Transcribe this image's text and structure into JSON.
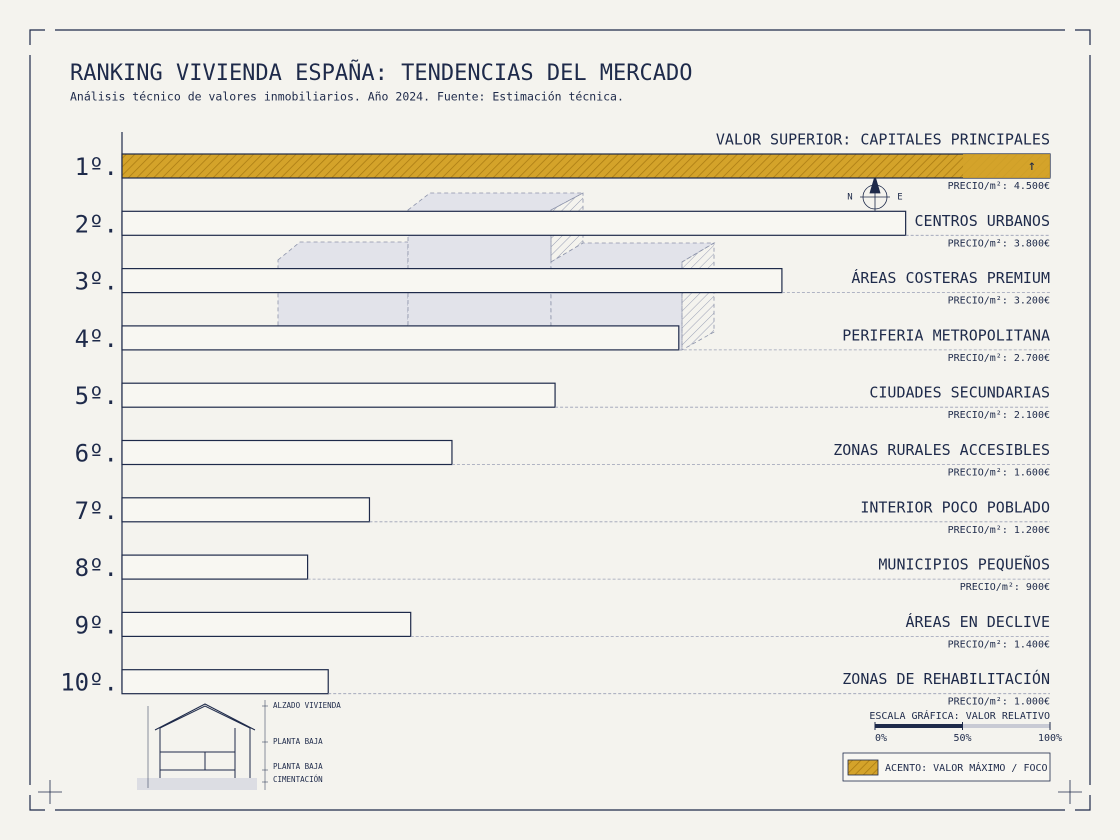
{
  "chart_data": {
    "type": "hbar",
    "title": "RANKING VIVIENDA ESPAÑA: TENDENCIAS DEL MERCADO",
    "subtitle": "Análisis técnico de valores inmobiliarios. Año 2024. Fuente: Estimación técnica.",
    "ranks": [
      "1º.",
      "2º.",
      "3º.",
      "4º.",
      "5º.",
      "6º.",
      "7º.",
      "8º.",
      "9º.",
      "10º."
    ],
    "categories": [
      "VALOR SUPERIOR: CAPITALES PRINCIPALES",
      "CENTROS URBANOS",
      "ÁREAS COSTERAS PREMIUM",
      "PERIFERIA METROPOLITANA",
      "CIUDADES SECUNDARIAS",
      "ZONAS RURALES ACCESIBLES",
      "INTERIOR POCO POBLADO",
      "MUNICIPIOS PEQUEÑOS",
      "ÁREAS EN DECLIVE",
      "ZONAS DE REHABILITACIÓN"
    ],
    "values": [
      4500,
      3800,
      3200,
      2700,
      2100,
      1600,
      1200,
      900,
      1400,
      1000
    ],
    "value_labels": [
      "PRECIO/m²: 4.500€",
      "PRECIO/m²: 3.800€",
      "PRECIO/m²: 3.200€",
      "PRECIO/m²: 2.700€",
      "PRECIO/m²: 2.100€",
      "PRECIO/m²: 1.600€",
      "PRECIO/m²: 1.200€",
      "PRECIO/m²: 900€",
      "PRECIO/m²: 1.400€",
      "PRECIO/m²: 1.000€"
    ],
    "color": "#1e2a4a",
    "highlight_color": "#d4a32a",
    "highlight_marker": "↑",
    "scale": {
      "title": "ESCALA GRÁFICA: VALOR RELATIVO",
      "ticks": [
        {
          "value": 0,
          "label": "0%"
        },
        {
          "value": 50,
          "label": "50%"
        },
        {
          "value": 100,
          "label": "100%"
        }
      ]
    },
    "legend": "ACENTO: VALOR MÁXIMO / FOCO",
    "compass": [
      "N",
      "N",
      "E"
    ],
    "house_labels": [
      "ALZADO VIVIENDA",
      "PLANTA BAJA",
      "PLANTA BAJA",
      "CIMENTACIÓN"
    ]
  }
}
